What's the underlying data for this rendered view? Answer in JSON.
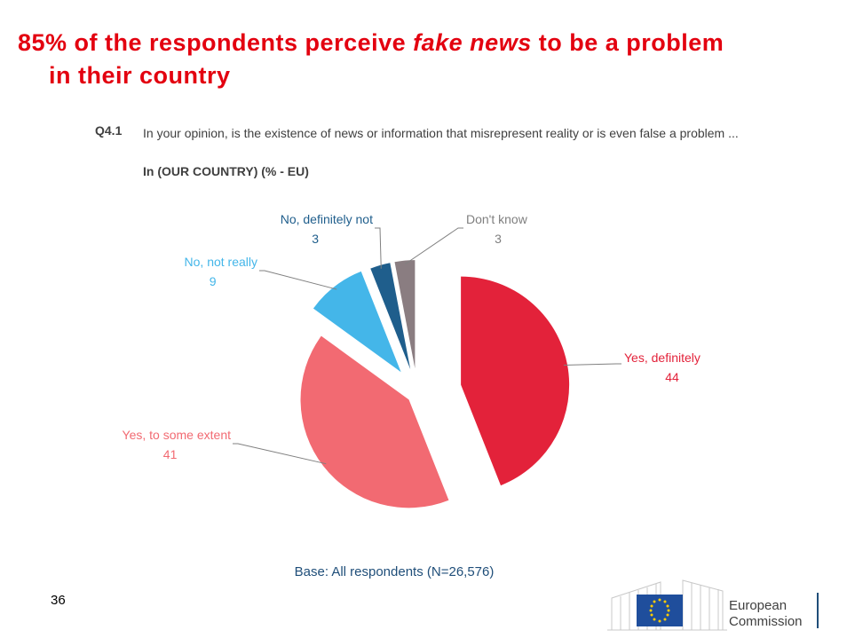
{
  "title": {
    "part1": "85% of the respondents perceive ",
    "emphasis": "fake news",
    "part2": " to be a problem",
    "line2": "in their country"
  },
  "question": {
    "number": "Q4.1",
    "text": "In your opinion, is the existence of news or information that misrepresent reality or is even false a problem ...",
    "sub": "In (OUR COUNTRY) (% - EU)"
  },
  "chart_data": {
    "type": "pie",
    "title": "",
    "slices": [
      {
        "label": "Yes, definitely",
        "value": 44,
        "color": "#e3223a"
      },
      {
        "label": "Yes, to some extent",
        "value": 41,
        "color": "#f26a72"
      },
      {
        "label": "No, not really",
        "value": 9,
        "color": "#44b6e9"
      },
      {
        "label": "No, definitely not",
        "value": 3,
        "color": "#1f5e8c"
      },
      {
        "label": "Don't know",
        "value": 3,
        "color": "#8a7d81"
      }
    ],
    "exploded": true
  },
  "footer": {
    "base": "Base: All respondents (N=26,576)",
    "page_number": "36",
    "logo_line1": "European",
    "logo_line2": "Commission"
  }
}
